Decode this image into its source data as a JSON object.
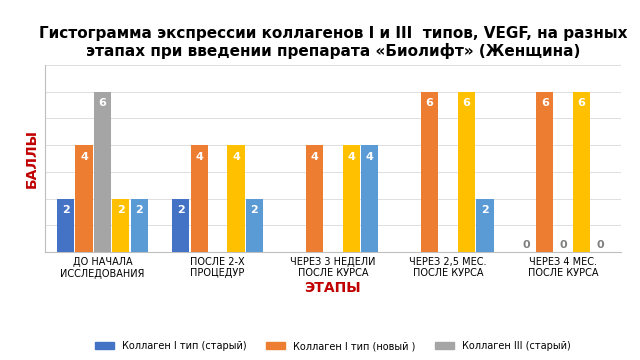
{
  "chart_data": {
    "type": "bar",
    "title": "Гистограмма экспрессии коллагенов I и III  типов, VEGF, на разных этапах при введении препарата «Биолифт» (Женщина)",
    "x_label": "ЭТАПЫ",
    "y_label": "БАЛЛЫ",
    "categories": [
      "ДО НАЧАЛА ИССЛЕДОВАНИЯ",
      "ПОСЛЕ 2-Х ПРОЦЕДУР",
      "ЧЕРЕЗ 3 НЕДЕЛИ ПОСЛЕ КУРСА",
      "ЧЕРЕЗ 2,5 МЕС. ПОСЛЕ КУРСА",
      "ЧЕРЕЗ 4 МЕС. ПОСЛЕ КУРСА"
    ],
    "series": [
      {
        "name": "Коллаген I тип (старый)",
        "color": "#4472c4",
        "values": [
          2,
          2,
          null,
          null,
          0
        ]
      },
      {
        "name": "Коллаген I тип (новый )",
        "color": "#ed7d31",
        "values": [
          4,
          4,
          4,
          6,
          6
        ]
      },
      {
        "name": "Коллаген III (старый)",
        "color": "#a5a5a5",
        "values": [
          6,
          null,
          null,
          null,
          0
        ]
      },
      {
        "color": "#ffc000",
        "values": [
          2,
          4,
          4,
          6,
          6
        ]
      },
      {
        "color": "#5b9bd5",
        "values": [
          2,
          2,
          4,
          2,
          0
        ]
      }
    ],
    "ylim": [
      0,
      7
    ],
    "yticks": [
      0,
      1,
      2,
      3,
      4,
      5,
      6,
      7
    ],
    "grid": true,
    "data_labels": true,
    "tick_labels": "x",
    "legend": "lower center"
  }
}
